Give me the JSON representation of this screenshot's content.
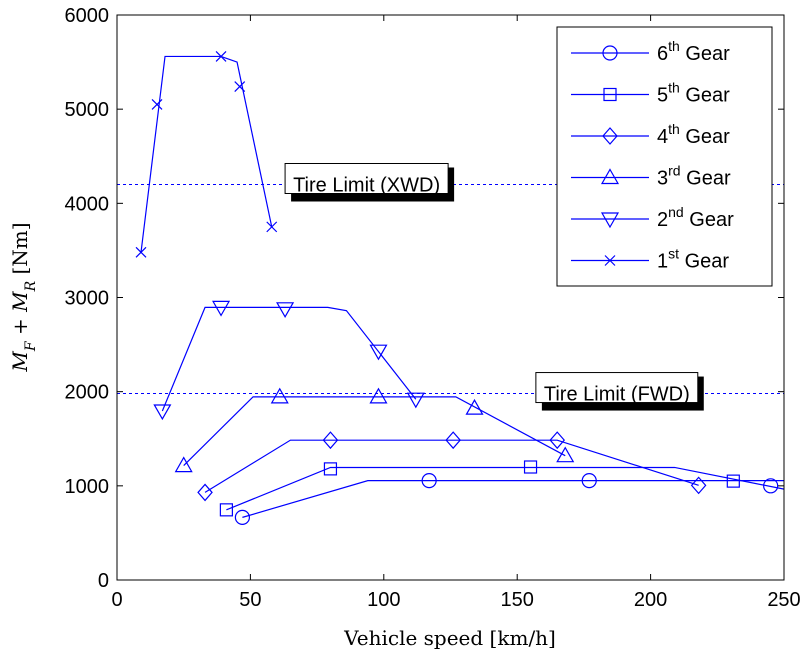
{
  "chart_data": {
    "type": "line",
    "title": "",
    "xlabel": "Vehicle speed [km/h]",
    "ylabel_parts": {
      "m1": "M",
      "s1": "F",
      "plus": " + ",
      "m2": "M",
      "s2": "R",
      "unit": " [Nm]"
    },
    "xlim": [
      0,
      250
    ],
    "ylim": [
      0,
      6000
    ],
    "xticks": [
      0,
      50,
      100,
      150,
      200,
      250
    ],
    "yticks": [
      0,
      1000,
      2000,
      3000,
      4000,
      5000,
      6000
    ],
    "grid": false,
    "legend_position": "top-right",
    "color": "#0000ff",
    "series": [
      {
        "name": "6th Gear",
        "base": "6",
        "sup": "th",
        "rest": " Gear",
        "marker": "circle",
        "x": [
          47,
          94,
          250
        ],
        "y": [
          665,
          1055,
          1055
        ],
        "markers_x": [
          47,
          117,
          177,
          245
        ],
        "markers_y": [
          665,
          1055,
          1055,
          1000
        ]
      },
      {
        "name": "5th Gear",
        "base": "5",
        "sup": "th",
        "rest": " Gear",
        "marker": "square",
        "x": [
          41,
          80,
          209,
          250
        ],
        "y": [
          745,
          1195,
          1195,
          965
        ],
        "markers_x": [
          41,
          80,
          155,
          231
        ],
        "markers_y": [
          745,
          1180,
          1200,
          1050
        ]
      },
      {
        "name": "4th Gear",
        "base": "4",
        "sup": "th",
        "rest": " Gear",
        "marker": "diamond",
        "x": [
          33,
          65,
          165,
          218
        ],
        "y": [
          930,
          1485,
          1485,
          1005
        ],
        "markers_x": [
          33,
          80,
          126,
          165,
          218
        ],
        "markers_y": [
          930,
          1485,
          1485,
          1485,
          1005
        ]
      },
      {
        "name": "3rd Gear",
        "base": "3",
        "sup": "rd",
        "rest": " Gear",
        "marker": "triangle-up",
        "x": [
          25,
          51,
          127,
          168
        ],
        "y": [
          1215,
          1945,
          1945,
          1320
        ],
        "markers_x": [
          25,
          61,
          98,
          134,
          168
        ],
        "markers_y": [
          1215,
          1945,
          1945,
          1825,
          1320
        ]
      },
      {
        "name": "2nd Gear",
        "base": "2",
        "sup": "nd",
        "rest": " Gear",
        "marker": "triangle-down",
        "x": [
          17,
          33,
          79,
          86,
          112
        ],
        "y": [
          1795,
          2895,
          2895,
          2860,
          1920
        ],
        "markers_x": [
          17,
          39,
          63,
          98,
          112
        ],
        "markers_y": [
          1795,
          2895,
          2880,
          2430,
          1920
        ]
      },
      {
        "name": "1st Gear",
        "base": "1",
        "sup": "st",
        "rest": " Gear",
        "marker": "x",
        "x": [
          9,
          18,
          39,
          45,
          58
        ],
        "y": [
          3480,
          5560,
          5560,
          5500,
          3750
        ],
        "markers_x": [
          9,
          15,
          39,
          46,
          58
        ],
        "markers_y": [
          3480,
          5050,
          5560,
          5240,
          3750
        ]
      }
    ],
    "reference_lines": [
      {
        "y": 4200,
        "label": "Tire Limit (XWD)",
        "label_x": 63,
        "label_y": 4200
      },
      {
        "y": 1980,
        "label": "Tire Limit (FWD)",
        "label_x": 157,
        "label_y": 1980
      }
    ]
  }
}
